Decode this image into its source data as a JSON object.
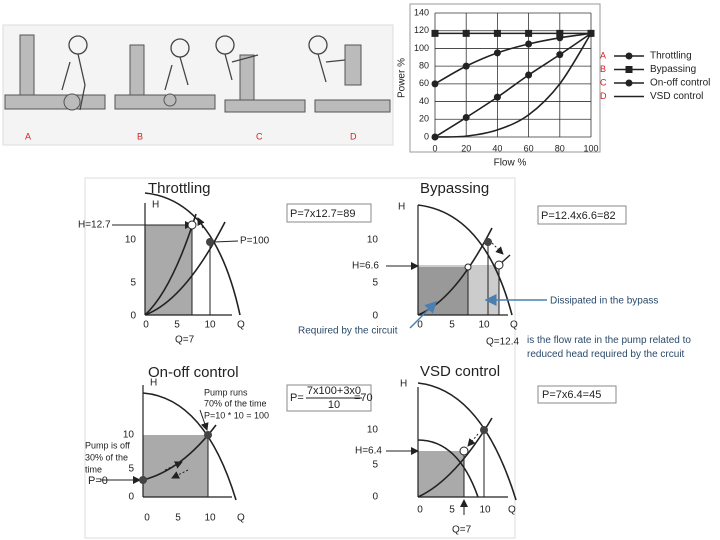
{
  "illustration": {
    "labels": [
      "A",
      "B",
      "C",
      "D"
    ]
  },
  "chart_data": {
    "type": "line",
    "xlabel": "Flow %",
    "ylabel": "Power %",
    "x": [
      0,
      20,
      40,
      60,
      80,
      100
    ],
    "series": [
      {
        "name": "Throttling",
        "letter": "A",
        "marker": "circle",
        "color": "#222",
        "values": [
          60,
          80,
          95,
          105,
          112,
          117
        ]
      },
      {
        "name": "Bypassing",
        "letter": "B",
        "marker": "square",
        "color": "#222",
        "values": [
          117,
          117,
          117,
          117,
          117,
          117
        ]
      },
      {
        "name": "On-off control",
        "letter": "C",
        "marker": "circle",
        "color": "#222",
        "values": [
          0,
          22,
          45,
          70,
          93,
          117
        ]
      },
      {
        "name": "VSD control",
        "letter": "D",
        "marker": "none",
        "color": "#222",
        "values": [
          0,
          1,
          8,
          25,
          60,
          117
        ]
      }
    ],
    "xlim": [
      0,
      100
    ],
    "xticks": [
      0,
      20,
      40,
      60,
      80,
      100
    ],
    "ylim": [
      0,
      140
    ],
    "yticks": [
      0,
      20,
      40,
      60,
      80,
      100,
      120,
      140
    ],
    "grid": true
  },
  "diagrams": [
    {
      "title": "Throttling",
      "formula": "P=7x12.7=89",
      "axis_h": "H",
      "axis_q": "Q",
      "yticks": [
        "10",
        "5",
        "0"
      ],
      "xticks": [
        "0",
        "5",
        "10"
      ],
      "labels": [
        "H=12.7",
        "P=100",
        "Q=7"
      ]
    },
    {
      "title": "Bypassing",
      "formula": "P=12.4x6.6=82",
      "axis_h": "H",
      "axis_q": "Q",
      "yticks": [
        "10",
        "5",
        "0"
      ],
      "xticks": [
        "0",
        "5",
        "10"
      ],
      "labels": [
        "H=6.6",
        "Q=12.4"
      ]
    },
    {
      "title": "On-off control",
      "formula": {
        "lhs": "P=",
        "numerator": "7x100+3x0",
        "denominator": "10",
        "rhs": "=70"
      },
      "axis_h": "H",
      "axis_q": "Q",
      "yticks": [
        "10",
        "5",
        "0"
      ],
      "xticks": [
        "0",
        "5",
        "10"
      ],
      "labels": [
        "Pump runs",
        "70% of the time",
        "P=10 * 10 = 100",
        "Pump is off",
        "30% of the",
        "time",
        "P=0"
      ]
    },
    {
      "title": "VSD control",
      "formula": "P=7x6.4=45",
      "axis_h": "H",
      "axis_q": "Q",
      "yticks": [
        "10",
        "5",
        "0"
      ],
      "xticks": [
        "0",
        "5",
        "10"
      ],
      "labels": [
        "H=6.4",
        "Q=7"
      ]
    }
  ],
  "notes": [
    "Dissipated in the bypass",
    "Required by the circuit",
    "is the flow rate in the pump related to reduced head required by the crcuit"
  ]
}
